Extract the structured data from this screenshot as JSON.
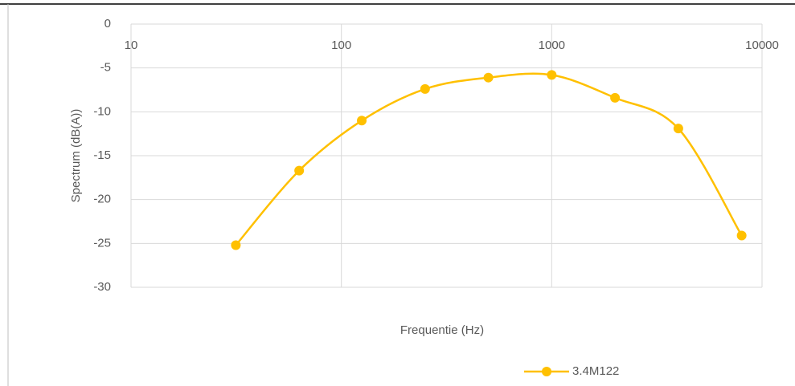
{
  "chart_data": {
    "type": "line",
    "x": [
      31.5,
      63,
      125,
      250,
      500,
      1000,
      2000,
      4000,
      8000
    ],
    "series": [
      {
        "name": "3.4M122",
        "color": "#ffc000",
        "values": [
          -25.2,
          -16.7,
          -11.0,
          -7.4,
          -6.1,
          -5.8,
          -8.4,
          -11.9,
          -24.1
        ]
      }
    ],
    "xlabel": "Frequentie (Hz)",
    "ylabel": "Spectrum (dB(A))",
    "xscale": "log",
    "xlim": [
      10,
      10000
    ],
    "xticks": [
      10,
      100,
      1000,
      10000
    ],
    "ylim": [
      -30,
      0
    ],
    "yticks": [
      0,
      -5,
      -10,
      -15,
      -20,
      -25,
      -30
    ],
    "grid": true,
    "smooth": true,
    "legend": "bottom"
  }
}
